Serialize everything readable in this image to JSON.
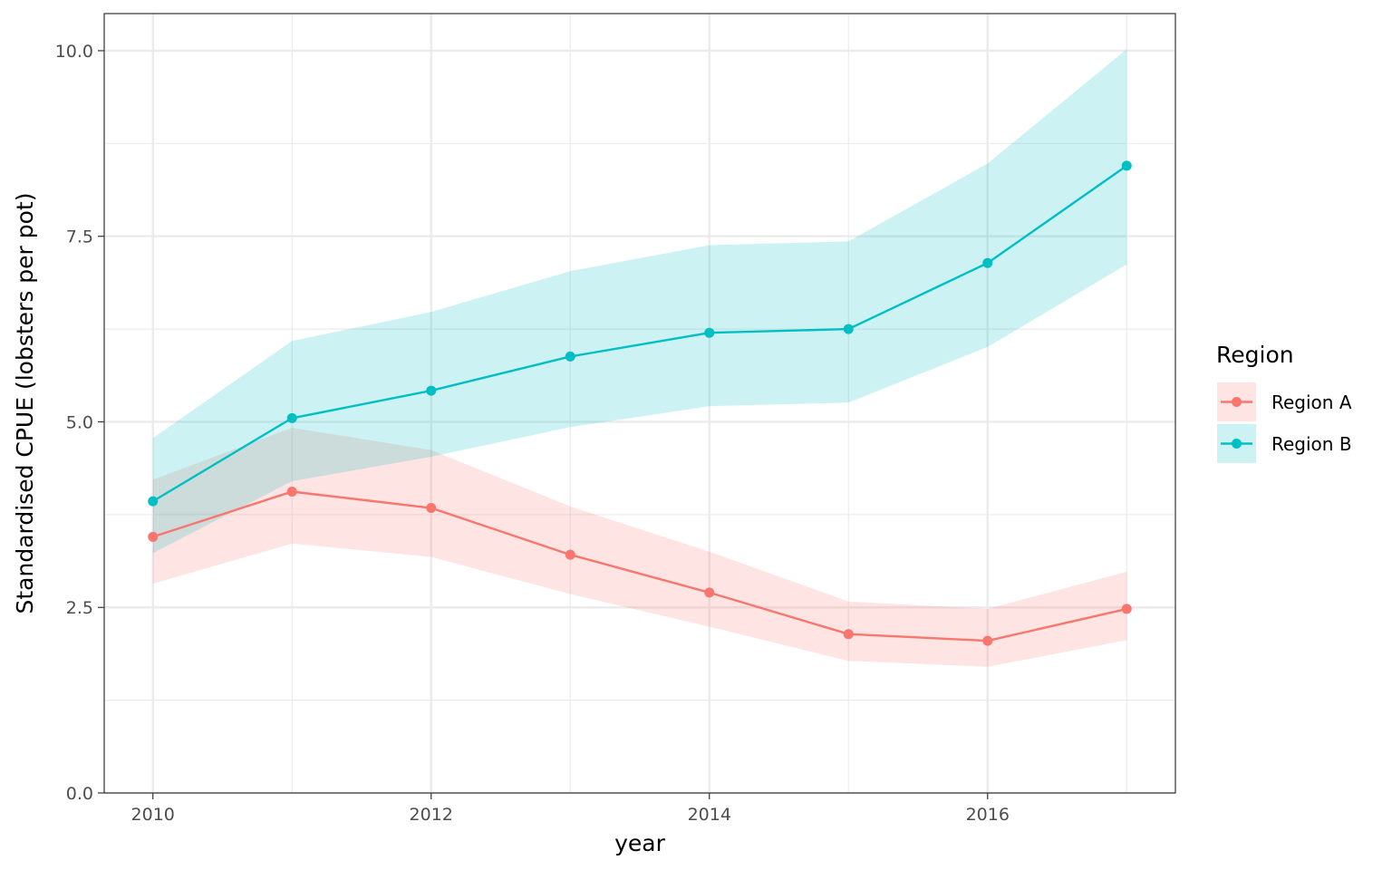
{
  "chart_data": {
    "type": "line",
    "xlabel": "year",
    "ylabel": "Standardised CPUE (lobsters per pot)",
    "xlim": [
      2009.65,
      2017.35
    ],
    "ylim": [
      0,
      10.5
    ],
    "x_ticks": [
      2010,
      2012,
      2014,
      2016
    ],
    "x_tick_labels": [
      "2010",
      "2012",
      "2014",
      "2016"
    ],
    "y_ticks": [
      0,
      2.5,
      5,
      7.5,
      10
    ],
    "y_tick_labels": [
      "0.0",
      "2.5",
      "5.0",
      "7.5",
      "10.0"
    ],
    "grid": true,
    "legend": {
      "title": "Region",
      "position": "right"
    },
    "x": [
      2010,
      2011,
      2012,
      2013,
      2014,
      2015,
      2016,
      2017
    ],
    "series": [
      {
        "name": "Region A",
        "color": "#F8766D",
        "values": [
          3.45,
          4.06,
          3.84,
          3.21,
          2.7,
          2.14,
          2.05,
          2.48
        ],
        "lower": [
          2.82,
          3.36,
          3.18,
          2.68,
          2.24,
          1.78,
          1.7,
          2.06
        ],
        "upper": [
          4.22,
          4.92,
          4.62,
          3.86,
          3.25,
          2.58,
          2.48,
          2.98
        ]
      },
      {
        "name": "Region B",
        "color": "#00BFC4",
        "values": [
          3.93,
          5.05,
          5.42,
          5.88,
          6.2,
          6.25,
          7.14,
          8.45
        ],
        "lower": [
          3.23,
          4.2,
          4.53,
          4.93,
          5.21,
          5.26,
          6.01,
          7.12
        ],
        "upper": [
          4.78,
          6.09,
          6.48,
          7.03,
          7.38,
          7.43,
          8.48,
          10.02
        ]
      }
    ]
  }
}
